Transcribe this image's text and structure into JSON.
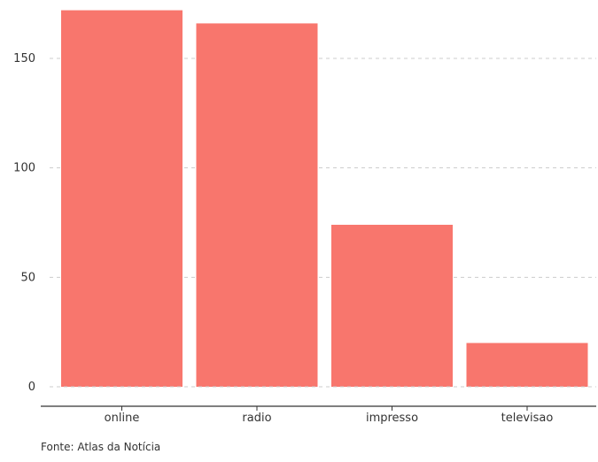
{
  "chart_data": {
    "type": "bar",
    "categories": [
      "online",
      "radio",
      "impresso",
      "televisao"
    ],
    "values": [
      172,
      166,
      74,
      20
    ],
    "yticks": [
      0,
      50,
      100,
      150
    ],
    "ylim": [
      0,
      175
    ],
    "grid": true,
    "legend": "none",
    "title": "",
    "xlabel": "",
    "ylabel": "",
    "caption": "Fonte: Atlas da Notícia",
    "colors": {
      "bar": "#F8766D",
      "grid": "#CCCCCC",
      "axis": "#333333"
    }
  }
}
